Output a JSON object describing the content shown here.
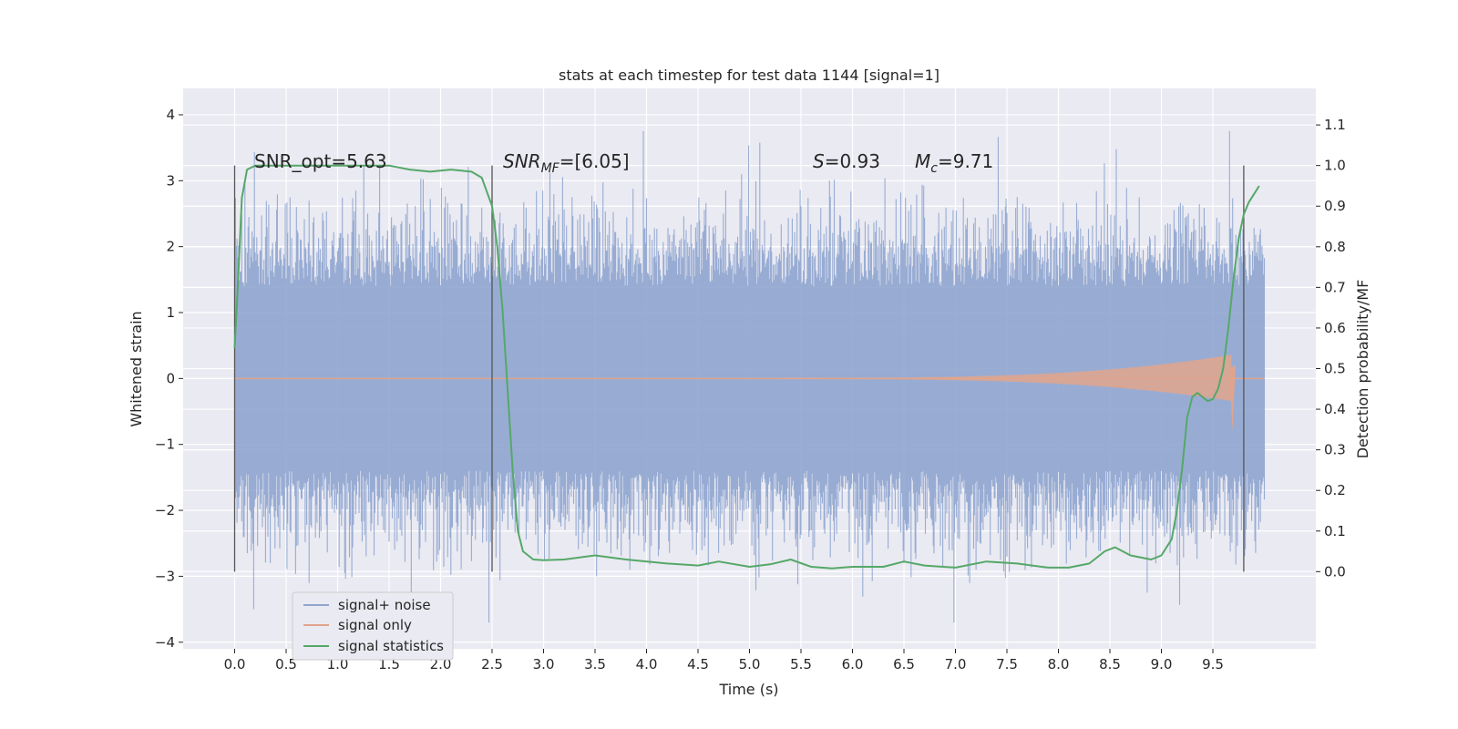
{
  "chart_data": {
    "type": "line",
    "title": "stats at each timestep for test data 1144 [signal=1]",
    "xlabel": "Time (s)",
    "ylabel_left": "Whitened strain",
    "ylabel_right": "Detection probability/MF",
    "xlim": [
      -0.5,
      10.5
    ],
    "ylim_left": [
      -4.1,
      4.4
    ],
    "ylim_right": [
      -0.19,
      1.19
    ],
    "xticks": [
      "0.0",
      "0.5",
      "1.0",
      "1.5",
      "2.0",
      "2.5",
      "3.0",
      "3.5",
      "4.0",
      "4.5",
      "5.0",
      "5.5",
      "6.0",
      "6.5",
      "7.0",
      "7.5",
      "8.0",
      "8.5",
      "9.0",
      "9.5"
    ],
    "yticks_left": [
      "4",
      "3",
      "2",
      "1",
      "0",
      "−1",
      "−2",
      "−3",
      "−4"
    ],
    "yticks_right": [
      "1.1",
      "1.0",
      "0.9",
      "0.8",
      "0.7",
      "0.6",
      "0.5",
      "0.4",
      "0.3",
      "0.2",
      "0.1",
      "0.0"
    ],
    "grid": true,
    "legend_position": "lower-left",
    "annotations": {
      "snr_opt": "SNR_opt=5.63",
      "snr_mf_main": "SNR",
      "snr_mf_sub": "MF",
      "snr_mf_value": "=[6.05]",
      "s_symbol": "S",
      "s_value": "=0.93",
      "mc_main": "M",
      "mc_sub": "c",
      "mc_value": "=9.71"
    },
    "vertical_markers_s": [
      0.0,
      2.5,
      9.8
    ],
    "noise_band": {
      "range": [
        0.0,
        10.0
      ],
      "typical_amplitude": 1.4,
      "peak_amplitude": 4.0
    },
    "series": [
      {
        "name": "signal+ noise",
        "color": "#8fa5cf",
        "kind": "whitened strain (signal + noise)"
      },
      {
        "name": "signal only",
        "color": "#e0a48c",
        "kind": "chirp signal, amplitude grows toward merger near 9.7 s"
      },
      {
        "name": "signal statistics",
        "color": "#55a868",
        "axis": "right",
        "x": [
          0.0,
          0.03,
          0.07,
          0.12,
          0.2,
          0.4,
          0.8,
          1.2,
          1.5,
          1.7,
          1.9,
          2.1,
          2.3,
          2.4,
          2.5,
          2.55,
          2.6,
          2.65,
          2.7,
          2.75,
          2.8,
          2.9,
          3.0,
          3.2,
          3.5,
          3.8,
          4.2,
          4.5,
          4.7,
          5.0,
          5.2,
          5.4,
          5.6,
          5.8,
          6.0,
          6.3,
          6.5,
          6.7,
          7.0,
          7.3,
          7.6,
          7.9,
          8.1,
          8.3,
          8.45,
          8.55,
          8.7,
          8.9,
          9.0,
          9.1,
          9.15,
          9.2,
          9.25,
          9.3,
          9.35,
          9.4,
          9.45,
          9.5,
          9.55,
          9.6,
          9.65,
          9.7,
          9.75,
          9.8,
          9.85,
          9.9,
          9.95
        ],
        "values": [
          0.55,
          0.7,
          0.92,
          0.99,
          1.0,
          1.0,
          1.0,
          1.0,
          1.0,
          0.99,
          0.985,
          0.99,
          0.985,
          0.97,
          0.9,
          0.8,
          0.65,
          0.45,
          0.25,
          0.1,
          0.05,
          0.03,
          0.028,
          0.03,
          0.04,
          0.03,
          0.02,
          0.015,
          0.025,
          0.012,
          0.018,
          0.03,
          0.012,
          0.008,
          0.012,
          0.012,
          0.025,
          0.015,
          0.01,
          0.025,
          0.02,
          0.01,
          0.01,
          0.02,
          0.05,
          0.06,
          0.04,
          0.03,
          0.04,
          0.08,
          0.15,
          0.25,
          0.38,
          0.43,
          0.44,
          0.43,
          0.42,
          0.425,
          0.45,
          0.5,
          0.6,
          0.72,
          0.82,
          0.88,
          0.91,
          0.93,
          0.95
        ]
      }
    ]
  }
}
